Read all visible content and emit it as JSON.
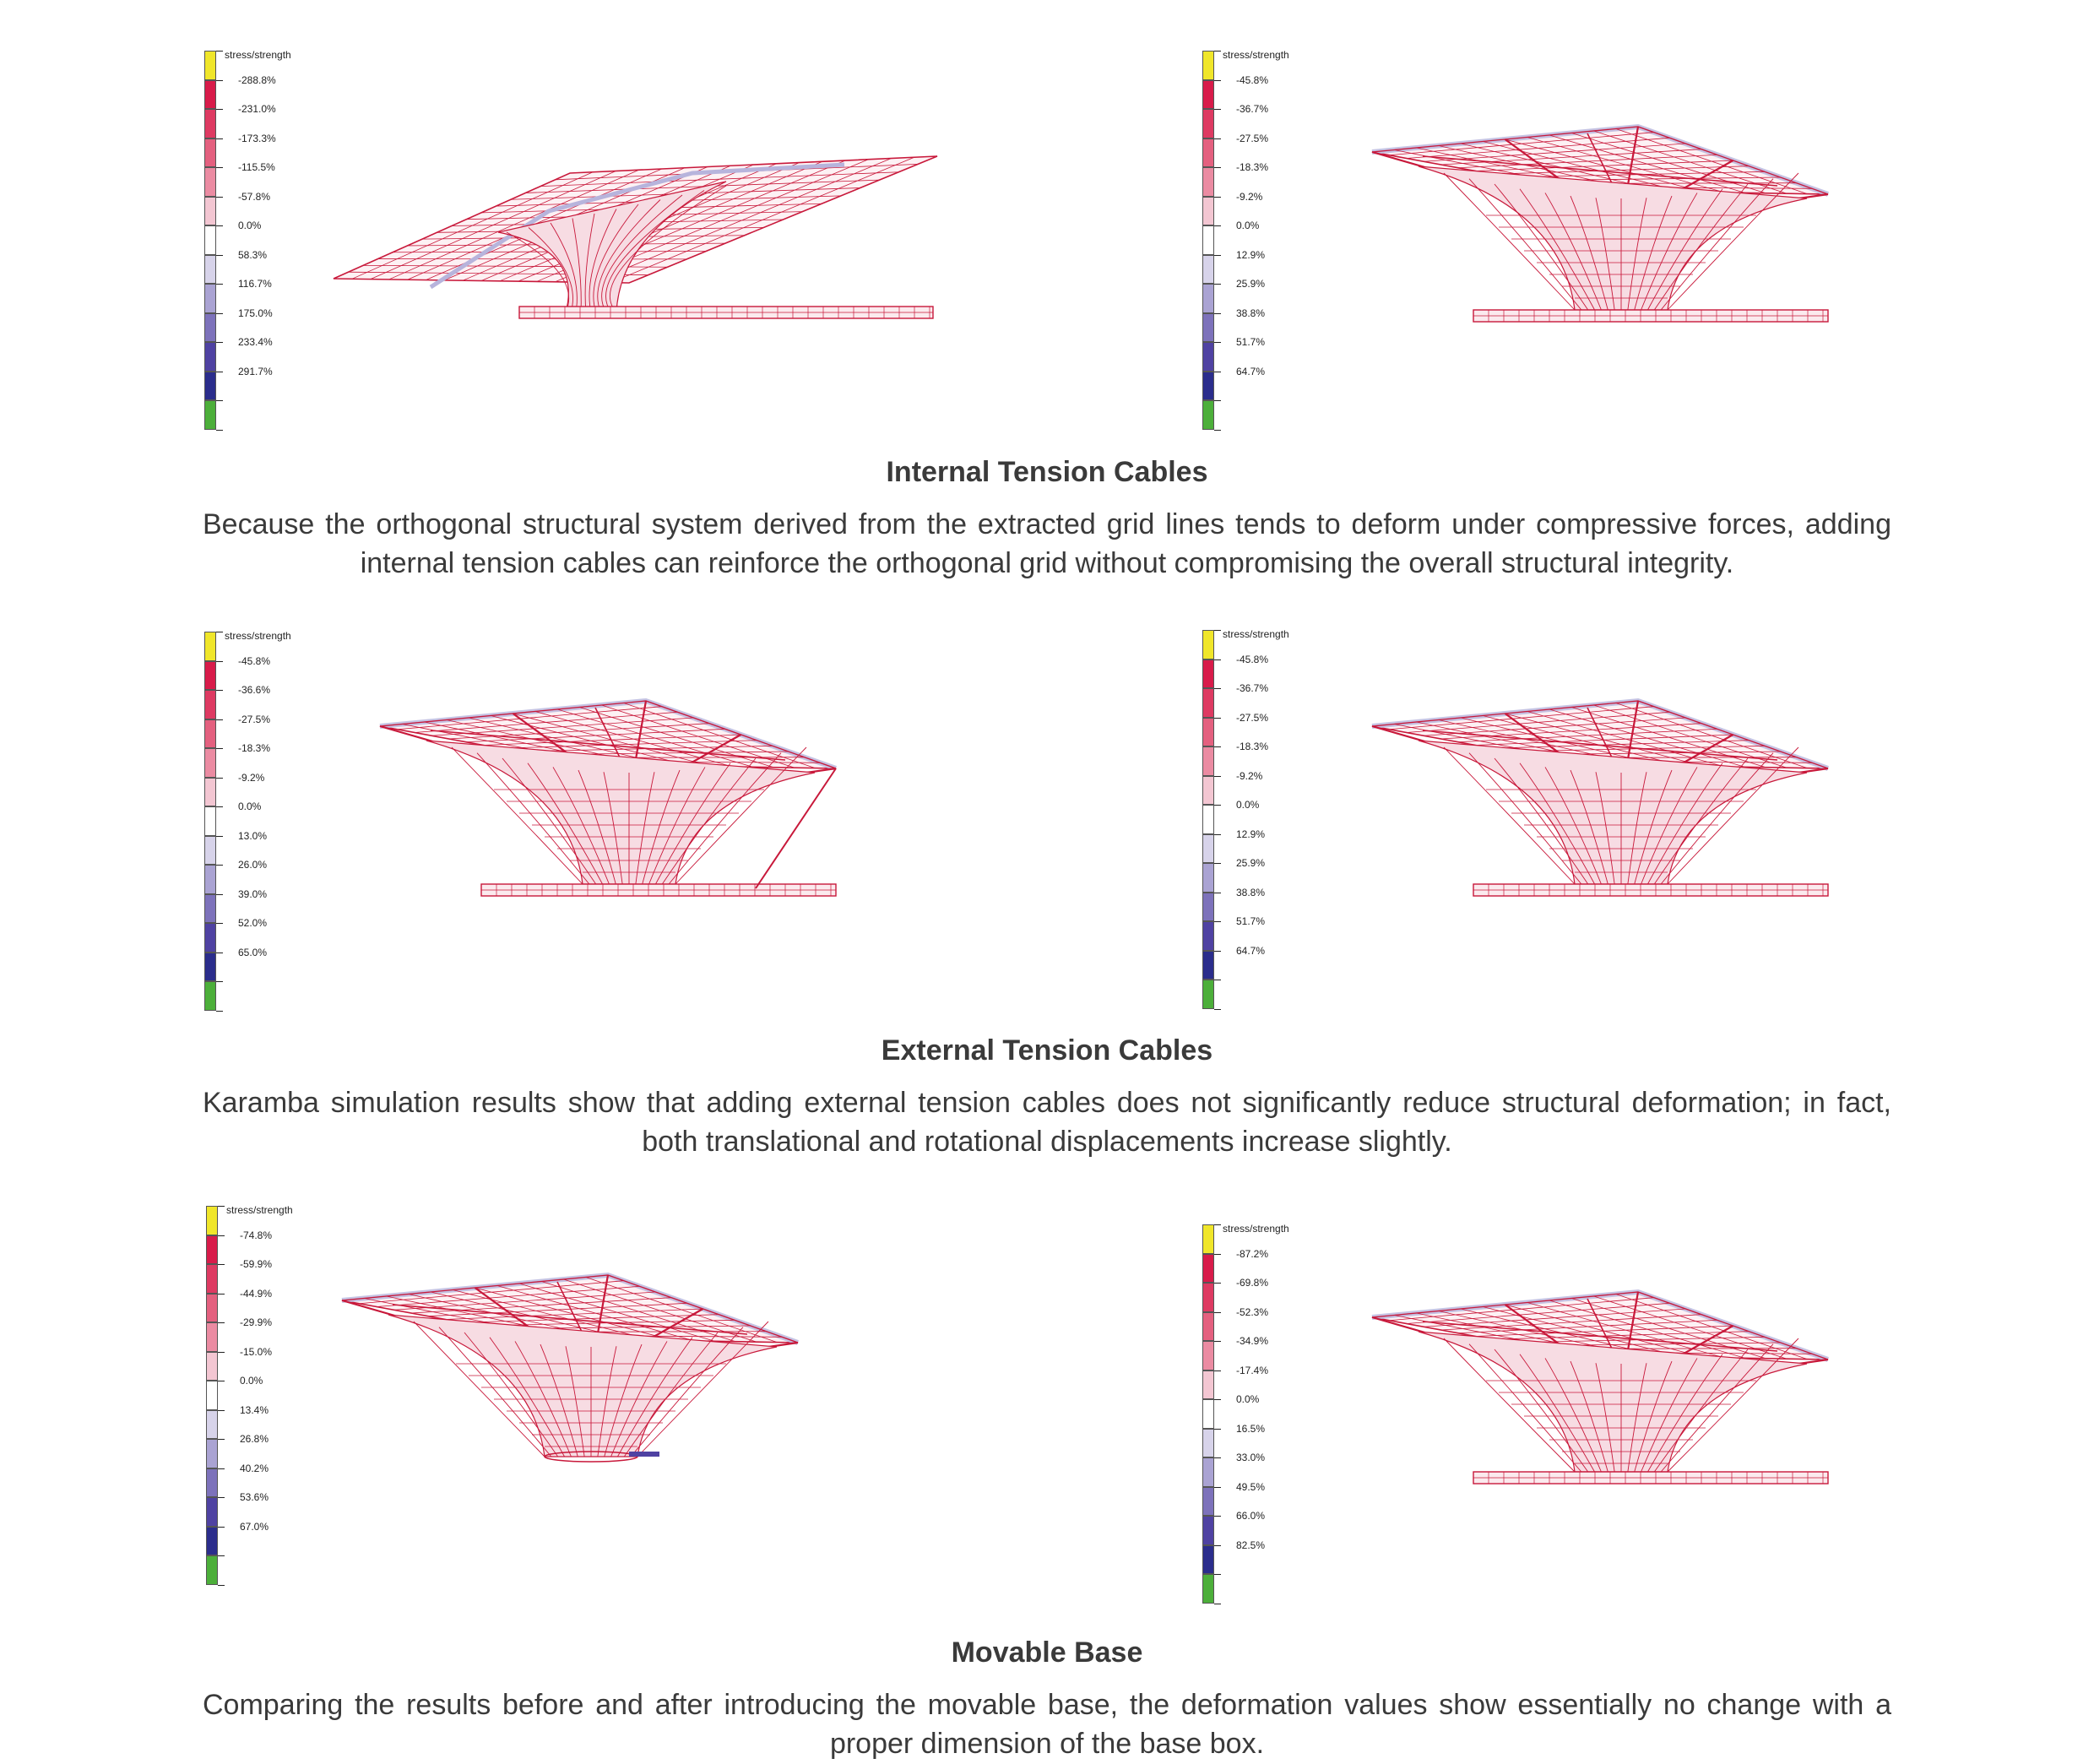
{
  "panels": [
    {
      "legend": {
        "title": "stress/strength",
        "labels": [
          "-288.8%",
          "-231.0%",
          "-173.3%",
          "-115.5%",
          "-57.8%",
          "0.0%",
          "58.3%",
          "116.7%",
          "175.0%",
          "233.4%",
          "291.7%"
        ]
      },
      "view": "twisted-roof"
    },
    {
      "legend": {
        "title": "stress/strength",
        "labels": [
          "-45.8%",
          "-36.7%",
          "-27.5%",
          "-18.3%",
          "-9.2%",
          "0.0%",
          "12.9%",
          "25.9%",
          "38.8%",
          "51.7%",
          "64.7%"
        ]
      },
      "view": "canopy"
    },
    {
      "legend": {
        "title": "stress/strength",
        "labels": [
          "-45.8%",
          "-36.6%",
          "-27.5%",
          "-18.3%",
          "-9.2%",
          "0.0%",
          "13.0%",
          "26.0%",
          "39.0%",
          "52.0%",
          "65.0%"
        ]
      },
      "view": "canopy-external-cable"
    },
    {
      "legend": {
        "title": "stress/strength",
        "labels": [
          "-45.8%",
          "-36.7%",
          "-27.5%",
          "-18.3%",
          "-9.2%",
          "0.0%",
          "12.9%",
          "25.9%",
          "38.8%",
          "51.7%",
          "64.7%"
        ]
      },
      "view": "canopy"
    },
    {
      "legend": {
        "title": "stress/strength",
        "labels": [
          "-74.8%",
          "-59.9%",
          "-44.9%",
          "-29.9%",
          "-15.0%",
          "0.0%",
          "13.4%",
          "26.8%",
          "40.2%",
          "53.6%",
          "67.0%"
        ]
      },
      "view": "canopy-no-base"
    },
    {
      "legend": {
        "title": "stress/strength",
        "labels": [
          "-87.2%",
          "-69.8%",
          "-52.3%",
          "-34.9%",
          "-17.4%",
          "0.0%",
          "16.5%",
          "33.0%",
          "49.5%",
          "66.0%",
          "82.5%"
        ]
      },
      "view": "canopy"
    }
  ],
  "sections": [
    {
      "title": "Internal Tension Cables",
      "text": "Because the orthogonal structural system derived from the extracted grid lines tends to deform under compressive forces, adding internal tension cables can reinforce the orthogonal grid without compromising the overall structural integrity."
    },
    {
      "title": "External Tension Cables",
      "text": "Karamba simulation results show that adding external tension cables does not significantly reduce structural deformation; in fact, both translational and rotational displacements increase slightly."
    },
    {
      "title": "Movable Base",
      "text": "Comparing the results before and after introducing the movable base, the deformation values show essentially no change with a proper dimension of the base box."
    }
  ],
  "colors": {
    "scale": [
      "#f0e62a",
      "#d81b4a",
      "#de3a62",
      "#e4607f",
      "#eb8ba2",
      "#f3c6d2",
      "#ffffff",
      "#d7d3ea",
      "#aaa3d3",
      "#7d72bb",
      "#4f42a2",
      "#2b2d8c",
      "#4caf3a"
    ],
    "model_stroke": "#c8183a",
    "model_fill": "#f7dce3",
    "cable_blue": "#b7b4dc"
  }
}
